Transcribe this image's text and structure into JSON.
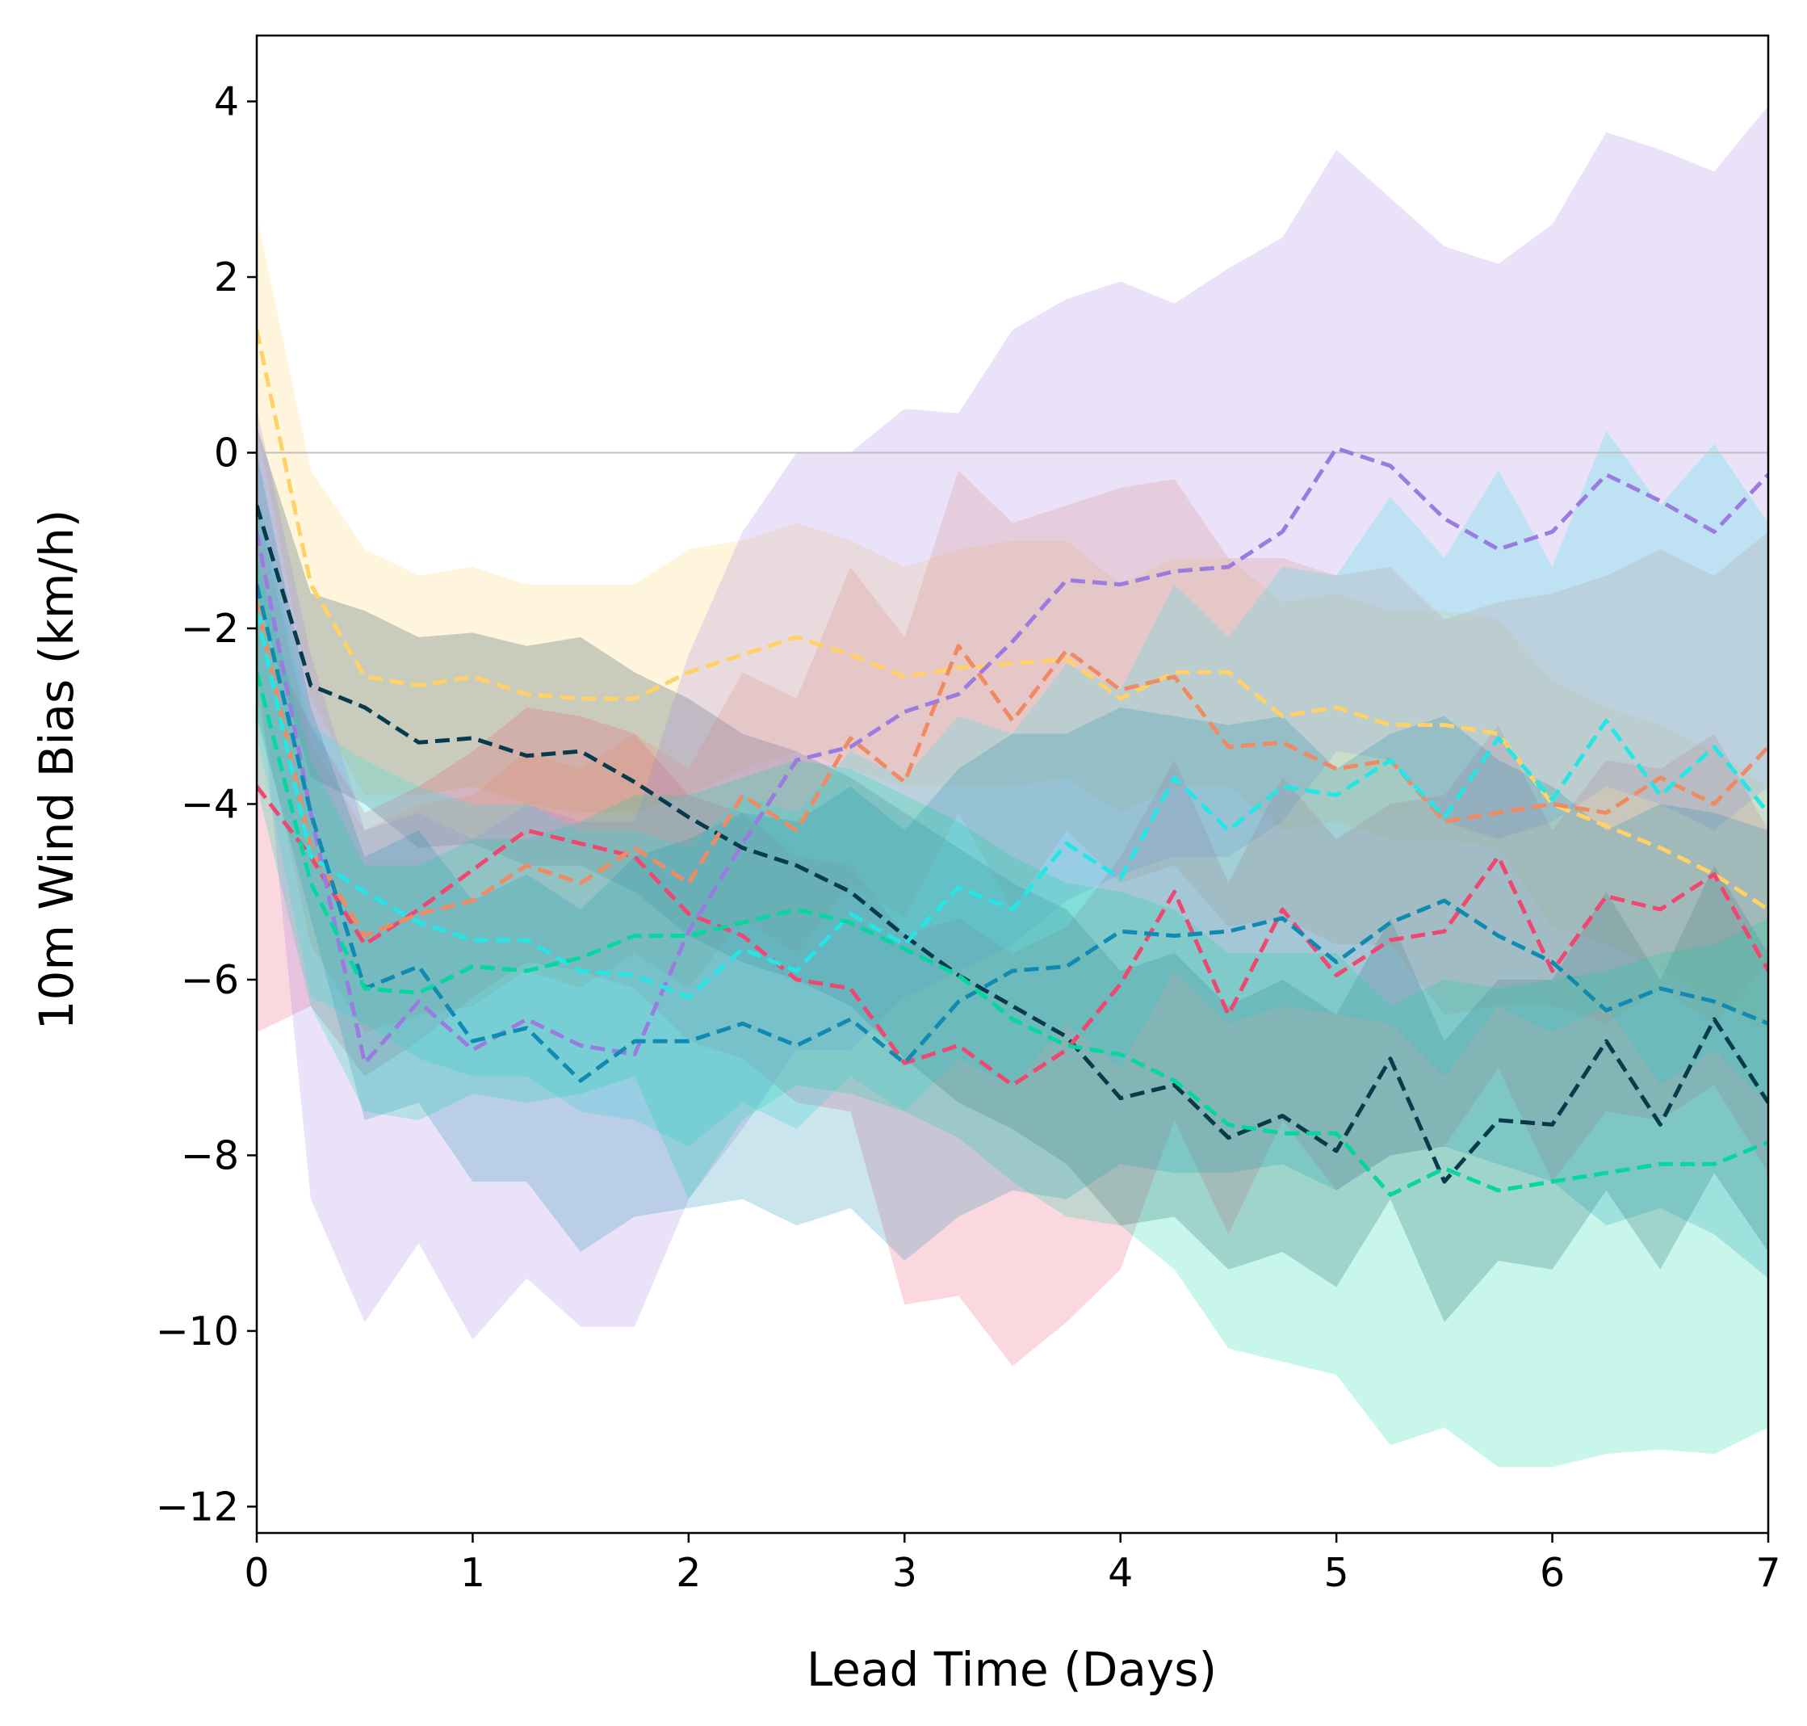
{
  "chart_data": {
    "type": "line",
    "title": "",
    "xlabel": "Lead Time (Days)",
    "ylabel": "10m Wind Bias (km/h)",
    "xlim": [
      0,
      7
    ],
    "ylim": [
      -12.3,
      4.75
    ],
    "xticks": [
      0,
      1,
      2,
      3,
      4,
      5,
      6,
      7
    ],
    "xtick_labels": [
      "0",
      "1",
      "2",
      "3",
      "4",
      "5",
      "6",
      "7"
    ],
    "yticks": [
      4,
      2,
      0,
      -2,
      -4,
      -6,
      -8,
      -10,
      -12
    ],
    "ytick_labels": [
      "4",
      "2",
      "0",
      "−2",
      "−4",
      "−6",
      "−8",
      "−10",
      "−12"
    ],
    "reference_line": {
      "y": 0,
      "color": "#bfbfbf"
    },
    "grid": false,
    "legend": "none",
    "line_style": "dashed",
    "x": [
      0,
      0.25,
      0.5,
      0.75,
      1,
      1.25,
      1.5,
      1.75,
      2,
      2.25,
      2.5,
      2.75,
      3,
      3.25,
      3.5,
      3.75,
      4,
      4.25,
      4.5,
      4.75,
      5,
      5.25,
      5.5,
      5.75,
      6,
      6.25,
      6.5,
      6.75,
      7
    ],
    "series": [
      {
        "color": "#ffd166",
        "values": [
          1.4,
          -1.5,
          -2.55,
          -2.65,
          -2.55,
          -2.75,
          -2.8,
          -2.8,
          -2.5,
          -2.3,
          -2.1,
          -2.3,
          -2.55,
          -2.45,
          -2.4,
          -2.35,
          -2.8,
          -2.5,
          -2.5,
          -3.0,
          -2.9,
          -3.1,
          -3.1,
          -3.2,
          -4.0,
          -4.25,
          -4.5,
          -4.8,
          -5.2
        ],
        "band_upper": [
          2.7,
          -0.2,
          -1.1,
          -1.4,
          -1.3,
          -1.5,
          -1.5,
          -1.5,
          -1.1,
          -1.0,
          -0.8,
          -1.0,
          -1.3,
          -1.1,
          -1.0,
          -1.0,
          -1.5,
          -1.2,
          -1.2,
          -1.7,
          -1.6,
          -1.8,
          -1.8,
          -1.9,
          -2.6,
          -2.9,
          -3.1,
          -3.4,
          -3.8
        ],
        "band_lower": [
          0.3,
          -2.8,
          -3.9,
          -3.9,
          -3.8,
          -4.0,
          -4.1,
          -4.1,
          -3.9,
          -3.6,
          -3.4,
          -3.6,
          -3.8,
          -3.8,
          -3.8,
          -3.7,
          -4.1,
          -3.8,
          -3.8,
          -4.3,
          -4.2,
          -4.4,
          -4.4,
          -4.5,
          -5.4,
          -5.6,
          -5.9,
          -6.2,
          -6.6
        ]
      },
      {
        "color": "#073b4c",
        "values": [
          -0.6,
          -2.65,
          -2.9,
          -3.3,
          -3.25,
          -3.45,
          -3.4,
          -3.75,
          -4.15,
          -4.5,
          -4.7,
          -5.0,
          -5.5,
          -5.95,
          -6.3,
          -6.65,
          -7.35,
          -7.2,
          -7.8,
          -7.55,
          -7.95,
          -6.9,
          -8.3,
          -7.6,
          -7.65,
          -6.7,
          -7.65,
          -6.45,
          -7.4
        ],
        "band_upper": [
          0.3,
          -1.6,
          -1.8,
          -2.1,
          -2.05,
          -2.2,
          -2.1,
          -2.5,
          -2.8,
          -3.2,
          -3.4,
          -3.7,
          -4.1,
          -4.5,
          -4.9,
          -5.2,
          -5.9,
          -5.7,
          -6.3,
          -6.0,
          -6.4,
          -5.3,
          -6.7,
          -6.0,
          -6.0,
          -5.0,
          -6.0,
          -4.7,
          -5.7
        ],
        "band_lower": [
          -1.6,
          -3.7,
          -4.0,
          -4.5,
          -4.45,
          -4.7,
          -4.7,
          -5.0,
          -5.5,
          -5.8,
          -6.0,
          -6.3,
          -6.9,
          -7.4,
          -7.7,
          -8.1,
          -8.8,
          -8.7,
          -9.3,
          -9.1,
          -9.5,
          -8.5,
          -9.9,
          -9.2,
          -9.3,
          -8.4,
          -9.3,
          -8.2,
          -9.1
        ]
      },
      {
        "color": "#ef476f",
        "values": [
          -3.8,
          -4.6,
          -5.6,
          -5.2,
          -4.75,
          -4.3,
          -4.45,
          -4.6,
          -5.25,
          -5.5,
          -6.0,
          -6.1,
          -6.95,
          -6.75,
          -7.2,
          -6.8,
          -6.05,
          -5.0,
          -6.4,
          -5.2,
          -5.95,
          -5.55,
          -5.45,
          -4.6,
          -5.9,
          -5.05,
          -5.2,
          -4.8,
          -5.9
        ],
        "band_upper": [
          -1.9,
          -3.1,
          -4.1,
          -3.8,
          -3.4,
          -2.9,
          -3.0,
          -3.2,
          -3.9,
          -4.1,
          -4.6,
          -4.7,
          -5.5,
          -5.3,
          -5.7,
          -5.4,
          -4.6,
          -3.5,
          -4.9,
          -3.7,
          -4.4,
          -4.0,
          -3.9,
          -3.1,
          -4.3,
          -3.5,
          -3.6,
          -3.2,
          -4.3
        ],
        "band_lower": [
          -6.6,
          -6.3,
          -7.1,
          -6.7,
          -6.2,
          -5.8,
          -5.9,
          -6.1,
          -6.7,
          -6.9,
          -7.4,
          -7.5,
          -9.7,
          -9.6,
          -10.4,
          -9.9,
          -9.3,
          -7.6,
          -8.9,
          -7.6,
          -8.4,
          -8.0,
          -7.9,
          -7.0,
          -8.3,
          -7.5,
          -7.6,
          -7.2,
          -8.2
        ]
      },
      {
        "color": "#ef8a62",
        "values": [
          -1.7,
          -4.5,
          -5.5,
          -5.25,
          -5.1,
          -4.7,
          -4.9,
          -4.5,
          -4.9,
          -3.9,
          -4.3,
          -3.25,
          -3.75,
          -2.2,
          -3.05,
          -2.25,
          -2.7,
          -2.55,
          -3.35,
          -3.3,
          -3.6,
          -3.5,
          -4.2,
          -4.1,
          -4.0,
          -4.1,
          -3.7,
          -4.0,
          -3.35
        ],
        "band_upper": [
          -0.6,
          -3.3,
          -4.3,
          -4.0,
          -3.9,
          -3.4,
          -3.6,
          -3.2,
          -3.6,
          -2.5,
          -2.8,
          -1.3,
          -2.1,
          -0.2,
          -0.8,
          -0.6,
          -0.4,
          -0.3,
          -1.2,
          -1.2,
          -1.4,
          -1.3,
          -1.9,
          -1.7,
          -1.6,
          -1.4,
          -1.1,
          -1.4,
          -0.9
        ],
        "band_lower": [
          -2.8,
          -5.6,
          -6.6,
          -6.4,
          -6.3,
          -5.9,
          -6.1,
          -5.7,
          -6.1,
          -5.3,
          -5.7,
          -4.9,
          -5.3,
          -4.1,
          -5.2,
          -4.3,
          -4.9,
          -4.7,
          -5.4,
          -5.3,
          -5.6,
          -5.6,
          -6.4,
          -6.3,
          -6.3,
          -6.5,
          -6.1,
          -6.5,
          -5.8
        ]
      },
      {
        "color": "#9b7be0",
        "values": [
          -0.9,
          -4.1,
          -6.95,
          -6.25,
          -6.8,
          -6.45,
          -6.75,
          -6.85,
          -5.45,
          -4.45,
          -3.5,
          -3.35,
          -2.95,
          -2.75,
          -2.15,
          -1.45,
          -1.5,
          -1.35,
          -1.3,
          -0.9,
          0.05,
          -0.15,
          -0.75,
          -1.1,
          -0.9,
          -0.25,
          -0.55,
          -0.9,
          -0.25
        ],
        "band_upper": [
          0.5,
          -2.3,
          -4.3,
          -4.1,
          -4.4,
          -4.0,
          -4.2,
          -4.2,
          -2.3,
          -0.9,
          0.0,
          0.0,
          0.5,
          0.45,
          1.4,
          1.75,
          1.95,
          1.7,
          2.1,
          2.45,
          3.45,
          2.9,
          2.35,
          2.15,
          2.6,
          3.65,
          3.45,
          3.2,
          3.95
        ],
        "band_lower": [
          -2.3,
          -8.5,
          -9.9,
          -9.0,
          -10.1,
          -9.4,
          -9.95,
          -9.95,
          -8.5,
          -7.7,
          -6.8,
          -6.8,
          -6.2,
          -5.9,
          -5.6,
          -5.1,
          -4.8,
          -4.6,
          -4.6,
          -4.2,
          -3.4,
          -3.5,
          -4.2,
          -4.4,
          -4.2,
          -3.8,
          -4.0,
          -4.3,
          -3.8
        ]
      },
      {
        "color": "#26e5e5",
        "values": [
          -1.8,
          -4.6,
          -5.0,
          -5.35,
          -5.55,
          -5.55,
          -5.9,
          -5.95,
          -6.2,
          -5.65,
          -5.9,
          -5.25,
          -5.6,
          -4.95,
          -5.2,
          -4.45,
          -4.85,
          -3.7,
          -4.3,
          -3.8,
          -3.9,
          -3.5,
          -4.15,
          -3.25,
          -3.95,
          -3.05,
          -3.9,
          -3.35,
          -4.1
        ],
        "band_upper": [
          -0.5,
          -3.1,
          -3.5,
          -3.8,
          -4.0,
          -4.0,
          -4.3,
          -4.3,
          -4.5,
          -3.9,
          -4.1,
          -3.4,
          -3.7,
          -3.0,
          -3.2,
          -2.4,
          -2.7,
          -1.5,
          -2.1,
          -1.3,
          -1.4,
          -0.5,
          -1.2,
          -0.2,
          -1.3,
          0.25,
          -0.6,
          0.1,
          -0.8
        ],
        "band_lower": [
          -3.2,
          -6.2,
          -6.5,
          -6.9,
          -7.1,
          -7.1,
          -7.5,
          -7.6,
          -7.9,
          -7.4,
          -7.7,
          -7.1,
          -7.5,
          -6.9,
          -7.2,
          -6.5,
          -7.0,
          -5.9,
          -6.5,
          -6.3,
          -6.4,
          -6.5,
          -7.1,
          -6.3,
          -6.6,
          -6.3,
          -7.2,
          -6.8,
          -7.4
        ]
      },
      {
        "color": "#118ab2",
        "values": [
          -1.5,
          -4.1,
          -6.1,
          -5.85,
          -6.7,
          -6.55,
          -7.15,
          -6.7,
          -6.7,
          -6.5,
          -6.75,
          -6.45,
          -6.95,
          -6.25,
          -5.9,
          -5.85,
          -5.45,
          -5.5,
          -5.45,
          -5.3,
          -5.8,
          -5.35,
          -5.1,
          -5.5,
          -5.8,
          -6.35,
          -6.1,
          -6.25,
          -6.5
        ],
        "band_upper": [
          0.0,
          -2.9,
          -4.6,
          -4.3,
          -5.1,
          -4.8,
          -5.2,
          -4.6,
          -4.4,
          -4.1,
          -4.2,
          -3.8,
          -4.3,
          -3.6,
          -3.2,
          -3.2,
          -2.9,
          -3.0,
          -3.1,
          -3.0,
          -3.6,
          -3.2,
          -3.0,
          -3.5,
          -3.8,
          -4.3,
          -4.0,
          -4.1,
          -4.3
        ],
        "band_lower": [
          -3.0,
          -5.3,
          -7.6,
          -7.4,
          -8.3,
          -8.3,
          -9.1,
          -8.7,
          -8.6,
          -8.5,
          -8.8,
          -8.6,
          -9.2,
          -8.7,
          -8.4,
          -8.5,
          -8.1,
          -8.2,
          -8.2,
          -8.1,
          -8.4,
          -8.0,
          -7.9,
          -8.1,
          -8.3,
          -8.8,
          -8.6,
          -8.9,
          -9.4
        ]
      },
      {
        "color": "#06d6a0",
        "values": [
          -2.5,
          -4.9,
          -6.1,
          -6.15,
          -5.85,
          -5.9,
          -5.75,
          -5.5,
          -5.5,
          -5.35,
          -5.2,
          -5.35,
          -5.65,
          -5.95,
          -6.45,
          -6.75,
          -6.85,
          -7.15,
          -7.65,
          -7.75,
          -7.75,
          -8.45,
          -8.15,
          -8.4,
          -8.3,
          -8.2,
          -8.1,
          -8.1,
          -7.85
        ],
        "band_upper": [
          -1.2,
          -3.5,
          -4.7,
          -4.7,
          -4.4,
          -4.4,
          -4.2,
          -3.9,
          -3.9,
          -3.7,
          -3.5,
          -3.6,
          -3.9,
          -4.2,
          -4.6,
          -4.9,
          -5.0,
          -5.2,
          -5.7,
          -5.7,
          -5.7,
          -6.3,
          -6.0,
          -6.1,
          -6.0,
          -5.9,
          -5.7,
          -5.6,
          -5.3
        ],
        "band_lower": [
          -3.8,
          -6.3,
          -7.5,
          -7.6,
          -7.3,
          -7.4,
          -7.3,
          -7.1,
          -8.5,
          -7.6,
          -7.2,
          -7.3,
          -7.5,
          -7.8,
          -8.3,
          -8.7,
          -8.8,
          -9.3,
          -10.2,
          -10.35,
          -10.5,
          -11.3,
          -11.1,
          -11.55,
          -11.55,
          -11.4,
          -11.35,
          -11.4,
          -11.1
        ]
      }
    ]
  }
}
